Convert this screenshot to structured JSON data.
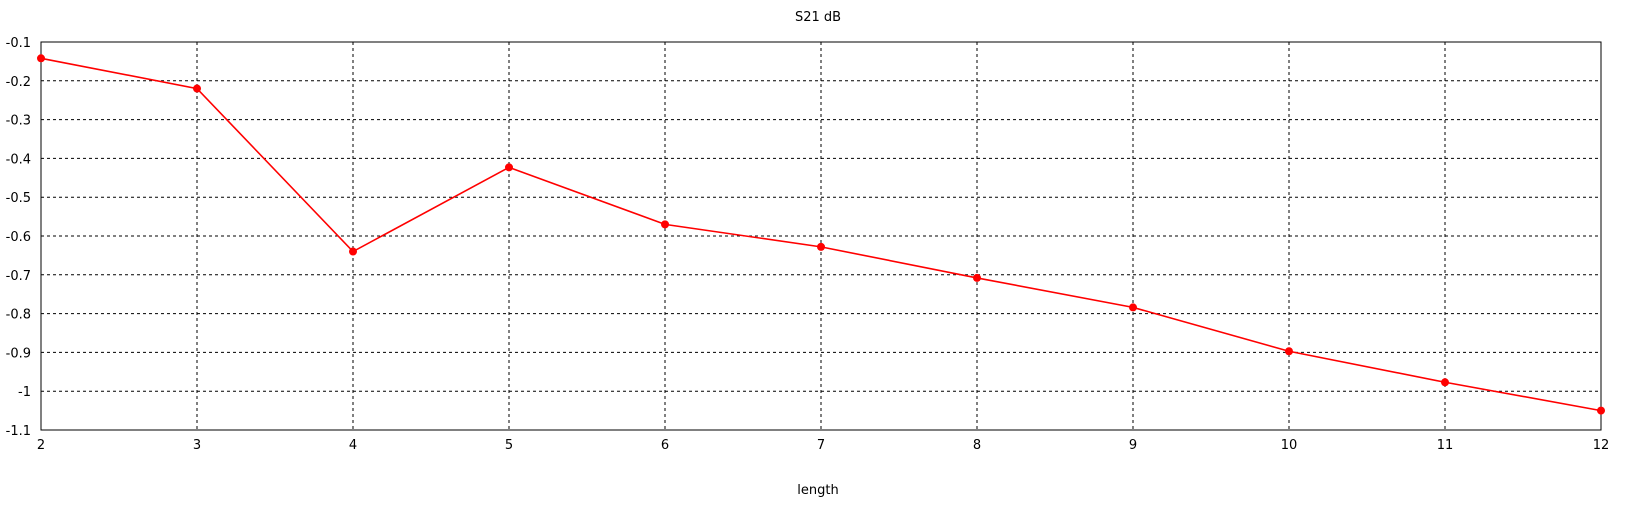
{
  "chart_data": {
    "type": "line",
    "title": "S21 dB",
    "xlabel": "length",
    "ylabel": "",
    "xlim": [
      2,
      12
    ],
    "ylim": [
      -1.1,
      -0.1
    ],
    "x_ticks": [
      "2",
      "3",
      "4",
      "5",
      "6",
      "7",
      "8",
      "9",
      "10",
      "11",
      "12"
    ],
    "y_ticks": [
      "-0.1",
      "-0.2",
      "-0.3",
      "-0.4",
      "-0.5",
      "-0.6",
      "-0.7",
      "-0.8",
      "-0.9",
      "-1",
      "-1.1"
    ],
    "grid": true,
    "series": [
      {
        "color": "#ff0000",
        "x": [
          2,
          3,
          4,
          5,
          6,
          7,
          8,
          9,
          10,
          11,
          12
        ],
        "values": [
          -0.142,
          -0.22,
          -0.64,
          -0.423,
          -0.57,
          -0.628,
          -0.708,
          -0.784,
          -0.897,
          -0.977,
          -1.05
        ]
      }
    ]
  }
}
